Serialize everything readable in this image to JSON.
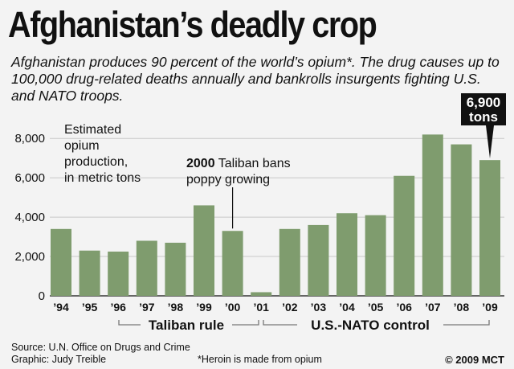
{
  "header": {
    "title": "Afghanistan’s deadly crop",
    "subtitle": "Afghanistan produces 90 percent of the world’s opium*. The drug causes up to 100,000 drug-related deaths annually and bankrolls insurgents fighting U.S. and NATO troops."
  },
  "chart_data": {
    "type": "bar",
    "title": "Afghanistan’s deadly crop",
    "ylabel": "Estimated opium production, in metric tons",
    "ylabel_lines": [
      "Estimated",
      "opium",
      "production,",
      "in metric tons"
    ],
    "categories": [
      "’94",
      "’95",
      "’96",
      "’97",
      "’98",
      "’99",
      "’00",
      "’01",
      "’02",
      "’03",
      "’04",
      "’05",
      "’06",
      "’07",
      "’08",
      "’09"
    ],
    "values": [
      3400,
      2300,
      2250,
      2800,
      2700,
      4600,
      3300,
      185,
      3400,
      3600,
      4200,
      4100,
      6100,
      8200,
      7700,
      6900
    ],
    "ylim": [
      0,
      8500
    ],
    "yticks": [
      0,
      2000,
      4000,
      6000,
      8000
    ],
    "ytick_labels": [
      "0",
      "2,000",
      "4,000",
      "6,000",
      "8,000"
    ],
    "grid": true,
    "annotations": {
      "ban_year": "2000",
      "ban_text_1": " Taliban bans",
      "ban_text_2": "poppy growing",
      "callout_value": "6,900",
      "callout_unit": "tons"
    },
    "periods": [
      {
        "label": "Taliban rule",
        "from": "’96",
        "to": "’01"
      },
      {
        "label": "U.S.-NATO control",
        "from": "’01",
        "to": "’09"
      }
    ]
  },
  "footer": {
    "source": "Source: U.N. Office on Drugs and Crime",
    "graphic": "Graphic: Judy Treible",
    "note": "*Heroin is made from opium",
    "copyright": "© 2009 MCT"
  },
  "colors": {
    "bar": "#7f9c6e",
    "background": "#f3f3f3",
    "callout": "#111111"
  }
}
